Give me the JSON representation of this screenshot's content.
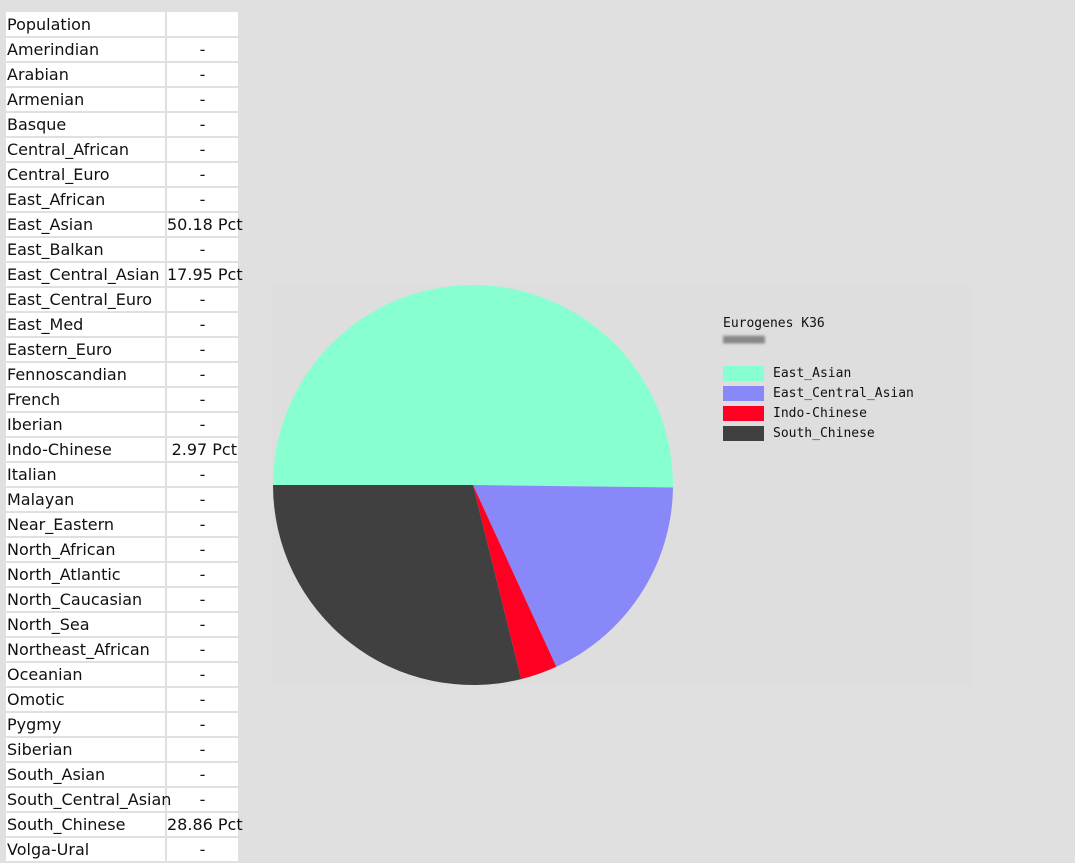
{
  "table": {
    "header": "Population",
    "rows": [
      {
        "name": "Amerindian",
        "value": "-"
      },
      {
        "name": "Arabian",
        "value": "-"
      },
      {
        "name": "Armenian",
        "value": "-"
      },
      {
        "name": "Basque",
        "value": "-"
      },
      {
        "name": "Central_African",
        "value": "-"
      },
      {
        "name": "Central_Euro",
        "value": "-"
      },
      {
        "name": "East_African",
        "value": "-"
      },
      {
        "name": "East_Asian",
        "value": "50.18 Pct"
      },
      {
        "name": "East_Balkan",
        "value": "-"
      },
      {
        "name": "East_Central_Asian",
        "value": "17.95 Pct"
      },
      {
        "name": "East_Central_Euro",
        "value": "-"
      },
      {
        "name": "East_Med",
        "value": "-"
      },
      {
        "name": "Eastern_Euro",
        "value": "-"
      },
      {
        "name": "Fennoscandian",
        "value": "-"
      },
      {
        "name": "French",
        "value": "-"
      },
      {
        "name": "Iberian",
        "value": "-"
      },
      {
        "name": "Indo-Chinese",
        "value": "2.97 Pct"
      },
      {
        "name": "Italian",
        "value": "-"
      },
      {
        "name": "Malayan",
        "value": "-"
      },
      {
        "name": "Near_Eastern",
        "value": "-"
      },
      {
        "name": "North_African",
        "value": "-"
      },
      {
        "name": "North_Atlantic",
        "value": "-"
      },
      {
        "name": "North_Caucasian",
        "value": "-"
      },
      {
        "name": "North_Sea",
        "value": "-"
      },
      {
        "name": "Northeast_African",
        "value": "-"
      },
      {
        "name": "Oceanian",
        "value": "-"
      },
      {
        "name": "Omotic",
        "value": "-"
      },
      {
        "name": "Pygmy",
        "value": "-"
      },
      {
        "name": "Siberian",
        "value": "-"
      },
      {
        "name": "South_Asian",
        "value": "-"
      },
      {
        "name": "South_Central_Asian",
        "value": "-"
      },
      {
        "name": "South_Chinese",
        "value": "28.86 Pct"
      },
      {
        "name": "Volga-Ural",
        "value": "-"
      }
    ]
  },
  "chart_data": {
    "type": "pie",
    "title": "Eurogenes K36",
    "subtitle": "■■■■■■",
    "legend_position": "right",
    "slices": [
      {
        "label": "East_Asian",
        "value": 50.18,
        "color": "#88ffd1"
      },
      {
        "label": "East_Central_Asian",
        "value": 17.95,
        "color": "#8888f8"
      },
      {
        "label": "Indo-Chinese",
        "value": 2.97,
        "color": "#ff0022"
      },
      {
        "label": "South_Chinese",
        "value": 28.86,
        "color": "#404040"
      }
    ]
  }
}
